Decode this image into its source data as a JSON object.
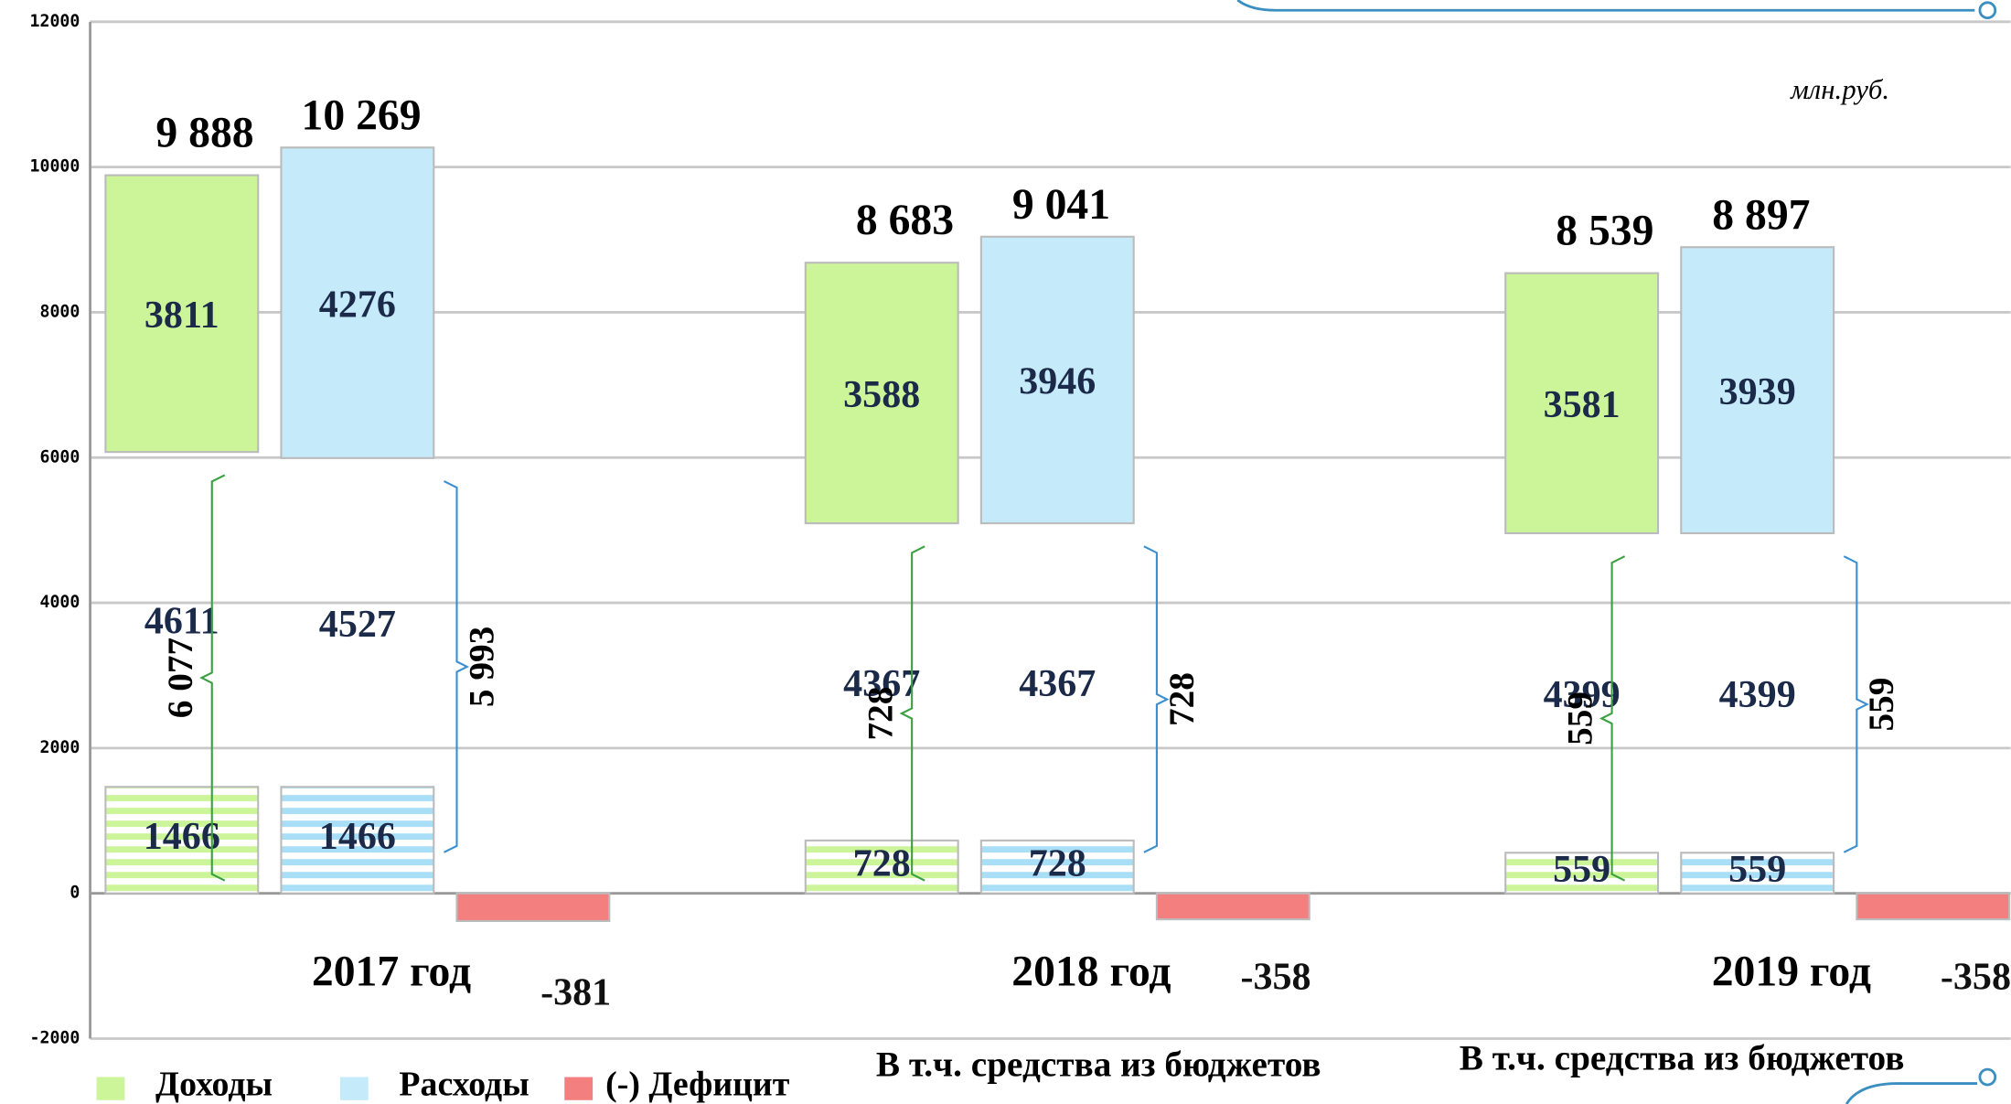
{
  "chart_data": {
    "type": "stacked-bar",
    "unit": "млн.руб.",
    "categories": [
      "2017 год",
      "2018 год",
      "2019 год"
    ],
    "ylim": [
      -2000,
      12000
    ],
    "yticks": [
      -2000,
      0,
      2000,
      4000,
      6000,
      8000,
      10000,
      12000
    ],
    "grid": true,
    "groups": [
      {
        "name": "Доходы",
        "color": "#ccf59a",
        "segments": [
          {
            "values": [
              1466,
              728,
              559
            ],
            "style": "striped"
          },
          {
            "values": [
              4611,
              4367,
              4399
            ],
            "style": "empty"
          },
          {
            "values": [
              3811,
              3588,
              3581
            ],
            "style": "filled"
          }
        ],
        "totals": [
          9888,
          8683,
          8539
        ],
        "value_labels": [
          "9 888",
          "8 683",
          "8 539"
        ],
        "bracket_labels": [
          "6 077",
          "728",
          "559"
        ]
      },
      {
        "name": "Расходы",
        "color": "#c5ebfb",
        "segments": [
          {
            "values": [
              1466,
              728,
              559
            ],
            "style": "striped"
          },
          {
            "values": [
              4527,
              4367,
              4399
            ],
            "style": "empty"
          },
          {
            "values": [
              4276,
              3946,
              3939
            ],
            "style": "filled"
          }
        ],
        "totals": [
          10269,
          9041,
          8897
        ],
        "value_labels": [
          "10 269",
          "9 041",
          "8 897"
        ],
        "bracket_labels": [
          "5 993",
          "728",
          "559"
        ]
      },
      {
        "name": "(-) Дефицит",
        "color": "#f47f7f",
        "segments": [
          {
            "values": [
              -381,
              -358,
              -358
            ],
            "style": "filled"
          }
        ]
      }
    ],
    "annotations": [
      "В т.ч. средства из бюджетов",
      "В т.ч. средства из бюджетов"
    ]
  }
}
